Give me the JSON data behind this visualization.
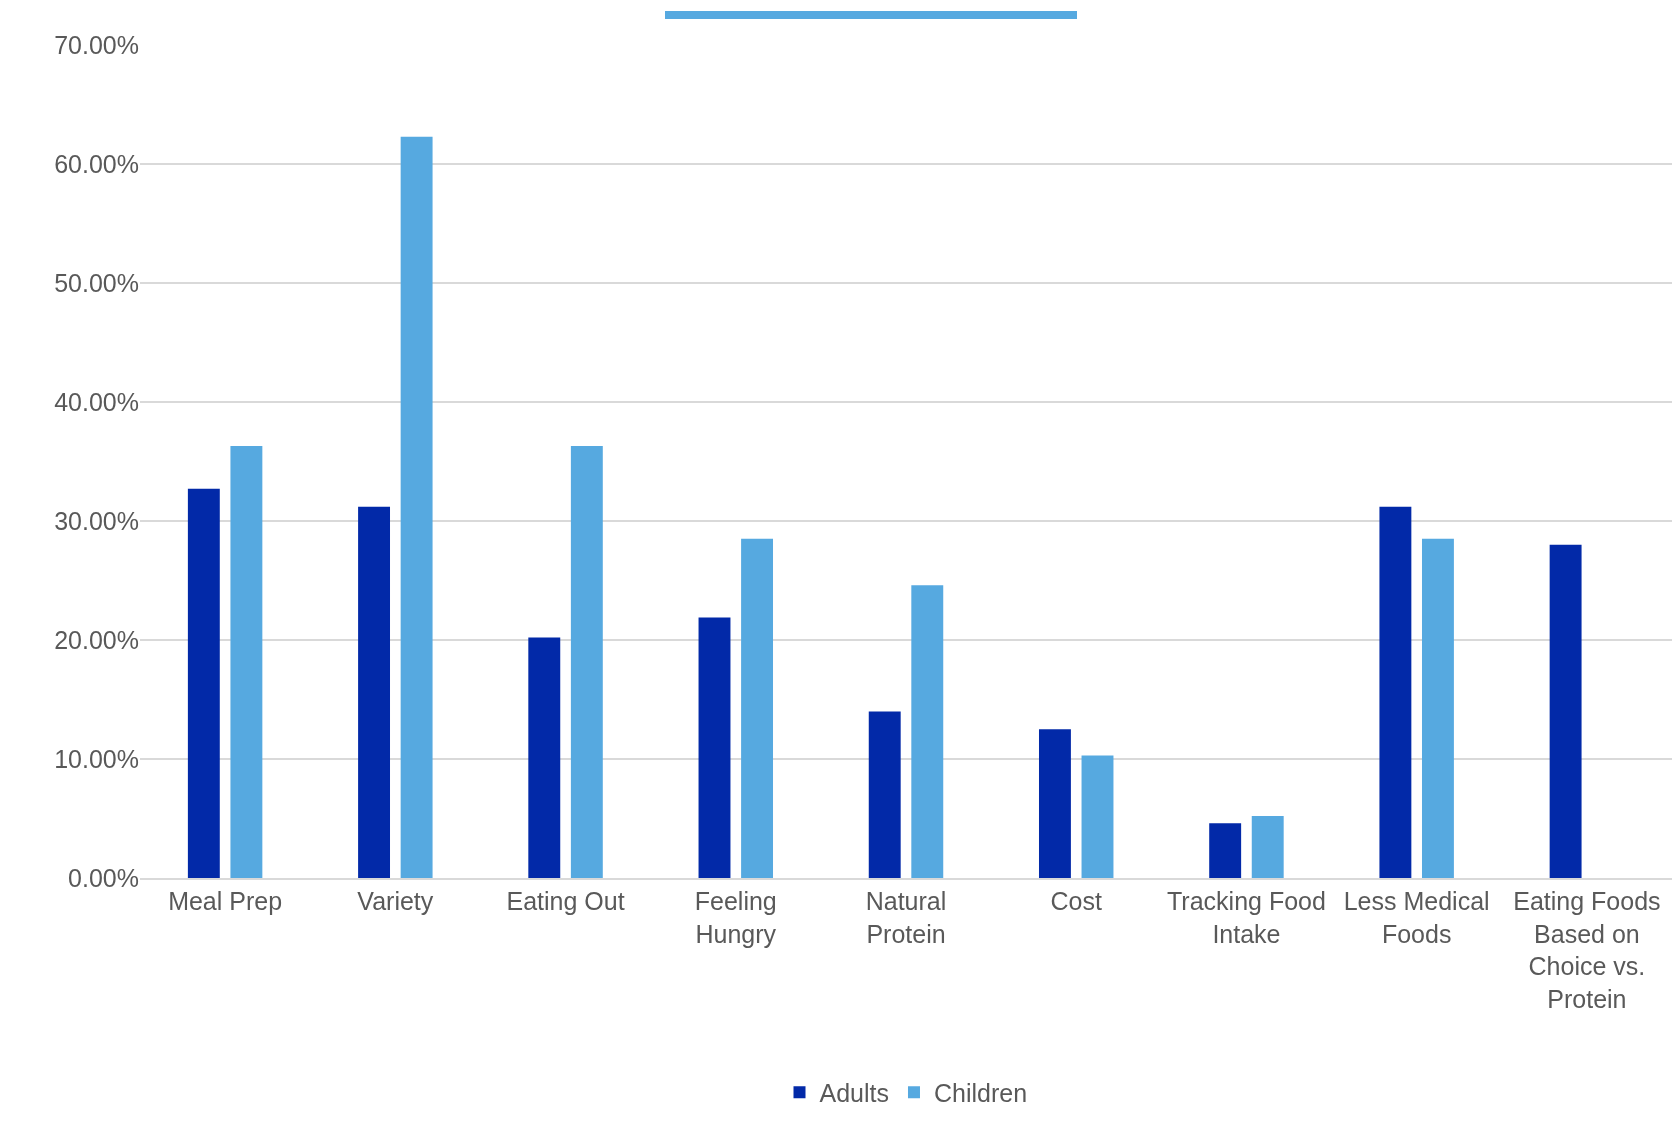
{
  "chart_data": {
    "type": "bar",
    "categories": [
      "Meal Prep",
      "Variety",
      "Eating Out",
      "Feeling Hungry",
      "Natural Protein",
      "Cost",
      "Tracking Food Intake",
      "Less Medical Foods",
      "Eating Foods Based on Choice vs. Protein"
    ],
    "series": [
      {
        "name": "Adults",
        "color": "#0229a8",
        "values": [
          32.7,
          31.2,
          20.2,
          21.9,
          14.0,
          12.5,
          4.6,
          31.2,
          28.0
        ]
      },
      {
        "name": "Children",
        "color": "#56a9e0",
        "values": [
          36.3,
          62.3,
          36.3,
          28.5,
          24.6,
          10.3,
          5.2,
          28.5,
          null
        ]
      }
    ],
    "ylim": [
      0,
      70
    ],
    "yticks": [
      {
        "value": 0,
        "label": "0.00%"
      },
      {
        "value": 10,
        "label": "10.00%"
      },
      {
        "value": 20,
        "label": "20.00%"
      },
      {
        "value": 30,
        "label": "30.00%"
      },
      {
        "value": 40,
        "label": "40.00%"
      },
      {
        "value": 50,
        "label": "50.00%"
      },
      {
        "value": 60,
        "label": "60.00%"
      },
      {
        "value": 70,
        "label": "70.00%"
      }
    ],
    "grid": "y",
    "legend": "bottom"
  }
}
